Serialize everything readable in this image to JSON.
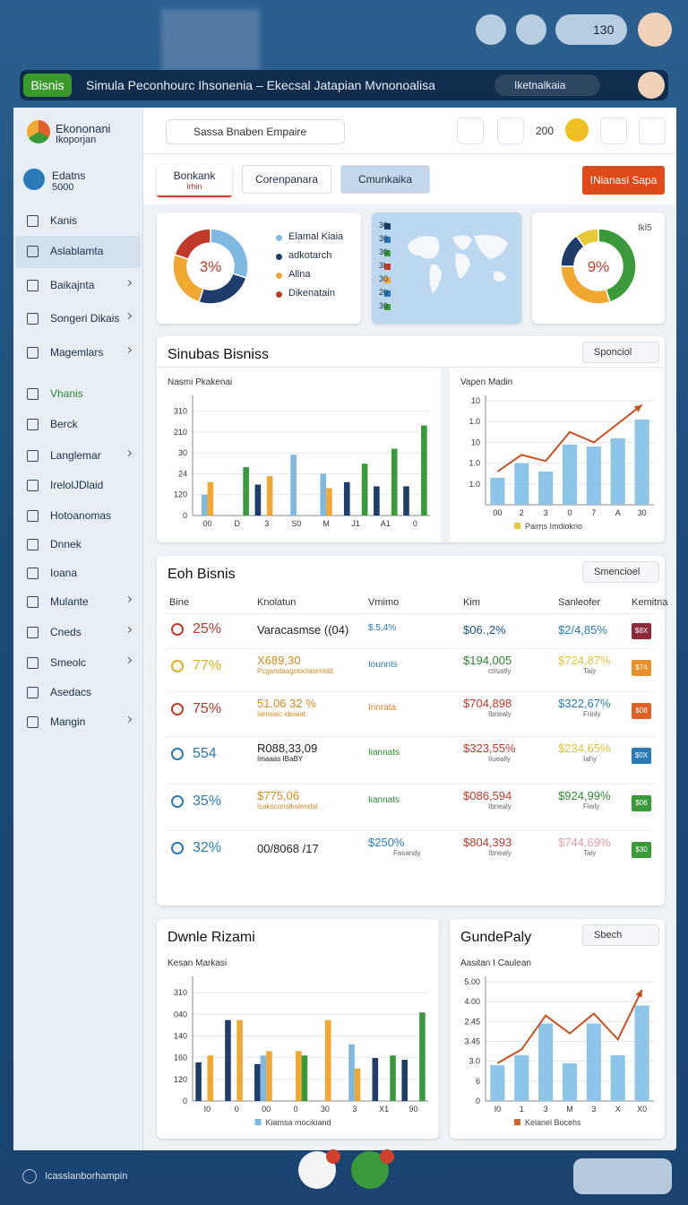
{
  "topbar": {
    "badge": "130"
  },
  "nav": {
    "pill": "Bisnis",
    "title": "Simula Peconhourc Ihsonenia – Ekecsal Jatapian Mvnonoalisa",
    "search": "Iketnalkaia"
  },
  "brand": {
    "name": "Ekononani",
    "tagline": "Ikoporjan"
  },
  "header": {
    "search": "Sassa Bnaben Empaire",
    "count": "200"
  },
  "profile": {
    "name": "Edatns",
    "value": "5000"
  },
  "menu": [
    {
      "label": "Kanis"
    },
    {
      "label": "Aslablamta",
      "active": true
    },
    {
      "label": "Baikajnta",
      "submenu": true
    },
    {
      "label": "Songeri Dikais",
      "submenu": true
    },
    {
      "label": "Magemlars",
      "submenu": true
    },
    {
      "label": "Vhanis",
      "highlight": true
    },
    {
      "label": "Berck"
    },
    {
      "label": "Langlemar",
      "submenu": true
    },
    {
      "label": "IrelolJDlaid"
    },
    {
      "label": "Hotoanomas"
    },
    {
      "label": "Dnnek"
    },
    {
      "label": "Ioana"
    },
    {
      "label": "Mulante",
      "submenu": true
    },
    {
      "label": "Cneds",
      "submenu": true
    },
    {
      "label": "Smeolc",
      "submenu": true
    },
    {
      "label": "Asedacs"
    },
    {
      "label": "Mangin",
      "submenu": true
    }
  ],
  "tabs": [
    {
      "label": "Bonkank",
      "sub": "lrhin",
      "active": true
    },
    {
      "label": "Corenpanara"
    },
    {
      "label": "Cmunkaika"
    }
  ],
  "action": "INianasi Sapa",
  "map_labels": [
    "30",
    "30",
    "30",
    "3l",
    "30",
    "20",
    "30"
  ],
  "sections": {
    "business": {
      "title": "Sinubas Bisniss",
      "select": "Sponciol"
    },
    "table": {
      "title": "Eoh Bisnis",
      "select": "Smencioel"
    },
    "bottom_left": {
      "title": "Dwnle Rizami"
    },
    "bottom_right": {
      "title": "GundePaly",
      "select": "Sbech"
    }
  },
  "charts": [
    {
      "type": "pie",
      "center_label": "3%",
      "categories": [
        "Elamal Kiaia",
        "adkotarch",
        "Allna",
        "Dikenatain"
      ],
      "values": [
        30,
        25,
        25,
        20
      ],
      "colors": [
        "#7fb8e0",
        "#1f3d6b",
        "#f0a830",
        "#c0392b"
      ]
    },
    {
      "type": "pie",
      "title": "Ikl5",
      "center_label": "9%",
      "values": [
        45,
        30,
        15,
        10
      ],
      "colors": [
        "#3a9a3a",
        "#f0a830",
        "#1f3d6b",
        "#e8c93a"
      ]
    },
    {
      "type": "bar",
      "subtitle": "Nasmi Pkakenai",
      "categories": [
        "00",
        "D",
        "3",
        "S0",
        "M",
        "J1",
        "A1",
        "0"
      ],
      "ylim": [
        0,
        330
      ],
      "yticks": [
        0,
        {
          "value": 60,
          "label": "120"
        },
        {
          "value": 120,
          "label": "24"
        },
        {
          "value": 180,
          "label": "30"
        },
        {
          "value": 240,
          "label": "210"
        },
        {
          "value": 300,
          "label": "310"
        }
      ],
      "grid": true,
      "series": [
        {
          "color": "#1f3d6b",
          "values": [
            null,
            null,
            89,
            null,
            null,
            96,
            84,
            84
          ]
        },
        {
          "color": "#7fb8e0",
          "values": [
            60,
            null,
            null,
            175,
            120,
            null,
            null,
            null
          ]
        },
        {
          "color": "#f0a830",
          "values": [
            96,
            null,
            113,
            null,
            79,
            null,
            null,
            null
          ]
        },
        {
          "color": "#3a9a3a",
          "values": [
            null,
            139,
            null,
            null,
            null,
            149,
            192,
            259
          ]
        }
      ]
    },
    {
      "type": "combo",
      "subtitle": "Vapen Madin",
      "categories": [
        "00",
        "2",
        "3",
        "0",
        "7",
        "A",
        "30"
      ],
      "ylim": [
        0,
        5
      ],
      "yticks": [
        {
          "value": 1,
          "label": "1.0"
        },
        {
          "value": 2,
          "label": "1.0"
        },
        {
          "value": 3,
          "label": "10"
        },
        {
          "value": 4,
          "label": "1.0"
        },
        {
          "value": 5,
          "label": "10"
        }
      ],
      "grid": true,
      "legend": {
        "label": "Paims Imdiokrio",
        "color": "#e8c93a"
      },
      "series": [
        {
          "mark": "bar",
          "color": "#8cc4ea",
          "values": [
            1.3,
            2.0,
            1.6,
            2.9,
            2.8,
            3.2,
            4.1
          ]
        },
        {
          "mark": "line",
          "color": "#c8501e",
          "values": [
            1.6,
            2.4,
            2.1,
            3.5,
            3.0,
            3.9,
            4.8
          ]
        }
      ]
    },
    {
      "type": "bar",
      "subtitle": "Kesan Markasi",
      "categories": [
        "I0",
        "0",
        "00",
        "0",
        "30",
        "3",
        "X1",
        "90"
      ],
      "ylim": [
        0,
        330
      ],
      "yticks": [
        0,
        {
          "value": 60,
          "label": "120"
        },
        {
          "value": 120,
          "label": "160"
        },
        {
          "value": 180,
          "label": "140"
        },
        {
          "value": 240,
          "label": "040"
        },
        {
          "value": 300,
          "label": "310"
        }
      ],
      "grid": true,
      "legend": {
        "label": "Kiamsa mocikiand",
        "color": "#7fb8e0"
      },
      "series": [
        {
          "color": "#1f3d6b",
          "values": [
            107,
            224,
            102,
            null,
            null,
            null,
            119,
            114
          ]
        },
        {
          "color": "#7fb8e0",
          "values": [
            null,
            null,
            126,
            null,
            null,
            157,
            null,
            null
          ]
        },
        {
          "color": "#f0a830",
          "values": [
            126,
            224,
            138,
            138,
            224,
            90,
            null,
            null
          ]
        },
        {
          "color": "#3a9a3a",
          "values": [
            null,
            null,
            null,
            126,
            null,
            null,
            126,
            245
          ]
        }
      ]
    },
    {
      "type": "combo",
      "subtitle": "Aasitan I Caulean",
      "categories": [
        "I0",
        "1",
        "3",
        "M",
        "3",
        "X",
        "X0"
      ],
      "ylim": [
        0,
        6
      ],
      "yticks": [
        0,
        {
          "value": 1,
          "label": "6"
        },
        {
          "value": 2,
          "label": "3.0"
        },
        {
          "value": 3,
          "label": "3.45"
        },
        {
          "value": 4,
          "label": "2.45"
        },
        {
          "value": 5,
          "label": "4.00"
        },
        {
          "value": 6,
          "label": "5.00"
        }
      ],
      "grid": true,
      "legend": {
        "label": "Kelanel Bucehs",
        "color": "#d8642a"
      },
      "series": [
        {
          "mark": "bar",
          "color": "#8cc4ea",
          "values": [
            1.8,
            2.3,
            3.9,
            1.9,
            3.9,
            2.3,
            4.8
          ]
        },
        {
          "mark": "line",
          "color": "#c8501e",
          "values": [
            1.9,
            2.6,
            4.3,
            3.4,
            4.4,
            3.1,
            5.6
          ]
        }
      ]
    }
  ],
  "table": {
    "headers": [
      "Bine",
      "Knolatun",
      "Vmimo",
      "Kim",
      "Sanleofer",
      "Kemitna"
    ],
    "rows": [
      {
        "indicator": {
          "text": "25%",
          "color": "#c0392b"
        },
        "name": {
          "text": "Varacasmse ((04)",
          "color": "#222222"
        },
        "vmimo": {
          "text": "$.5,4%",
          "color": "#2a7ab8"
        },
        "kim": {
          "text": "$06.,2%",
          "color": "#1f4e8a"
        },
        "sales": {
          "text": "$2/4,85%",
          "color": "#2a7ab8"
        },
        "badge": {
          "text": "$8X",
          "color": "#8a2a3a"
        }
      },
      {
        "indicator": {
          "text": "77%",
          "color": "#d9b21c"
        },
        "name": {
          "text": "X689,30",
          "sub": "Pcgandaagstoclasimidd",
          "color": "#d98a1c"
        },
        "vmimo": {
          "text": "Iounnts",
          "color": "#2a7ab8"
        },
        "kim": {
          "text": "$194,005",
          "sub": "ctrvatly",
          "color": "#2e8a2e"
        },
        "sales": {
          "text": "$724,87%",
          "sub": "Taiy",
          "color": "#e0c23a"
        },
        "badge": {
          "text": "$74",
          "color": "#e8902a"
        }
      },
      {
        "indicator": {
          "text": "75%",
          "color": "#c0392b"
        },
        "name": {
          "text": "51.06 32 %",
          "sub": "Iarnsaic ideaiat",
          "color": "#d98a1c"
        },
        "vmimo": {
          "text": "Innrata",
          "color": "#e0822a"
        },
        "kim": {
          "text": "$704,898",
          "sub": "Ibnealy",
          "color": "#c0392b"
        },
        "sales": {
          "text": "$322,67%",
          "sub": "Frinly",
          "color": "#2a7ab8"
        },
        "badge": {
          "text": "$08",
          "color": "#e0602a"
        }
      },
      {
        "indicator": {
          "text": "554",
          "color": "#2a7ab8"
        },
        "name": {
          "text": "R088,33,09",
          "sub": "Imaaas IBaBY",
          "color": "#222222"
        },
        "vmimo": {
          "text": "Iiannats",
          "color": "#2e8a2e"
        },
        "kim": {
          "text": "$323,55%",
          "sub": "Iiueaily",
          "color": "#c0392b"
        },
        "sales": {
          "text": "$234,65%",
          "sub": "Iahy",
          "color": "#e0c23a"
        },
        "badge": {
          "text": "$0X",
          "color": "#2a7ab8"
        }
      },
      {
        "indicator": {
          "text": "35%",
          "color": "#2a7ab8"
        },
        "name": {
          "text": "$775,06",
          "sub": "Icaksconstkalendal",
          "color": "#d98a1c"
        },
        "vmimo": {
          "text": "Iiannats",
          "color": "#2e8a2e"
        },
        "kim": {
          "text": "$086,594",
          "sub": "Ibnealy",
          "color": "#c0392b"
        },
        "sales": {
          "text": "$924,99%",
          "sub": "Fiwly",
          "color": "#2e8a2e"
        },
        "badge": {
          "text": "$06",
          "color": "#3a9a3a"
        }
      },
      {
        "indicator": {
          "text": "32%",
          "color": "#2a7ab8"
        },
        "name": {
          "text": "00/8068 /17",
          "color": "#222222"
        },
        "vmimo": {
          "text": "$250%",
          "sub": "Fasandy",
          "color": "#2a7ab8"
        },
        "kim": {
          "text": "$804,393",
          "sub": "Ibnealy",
          "color": "#c0392b"
        },
        "sales": {
          "text": "$744,69%",
          "sub": "Taiy",
          "color": "#e89aa8"
        },
        "badge": {
          "text": "$30",
          "color": "#3a9a3a"
        }
      }
    ]
  },
  "footer": "Icasslanborhampin"
}
